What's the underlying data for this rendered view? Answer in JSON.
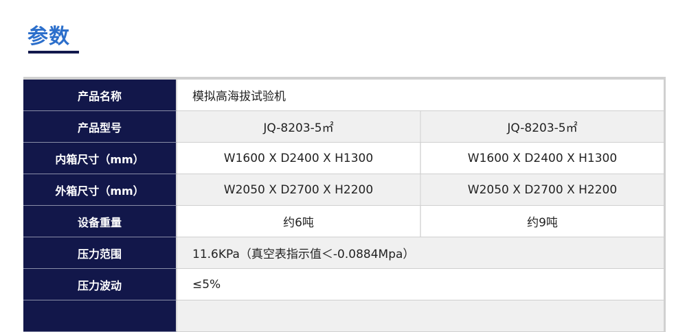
{
  "title": "参数",
  "rows": [
    {
      "label": "产品名称",
      "values": [
        "模拟高海拔试验机"
      ]
    },
    {
      "label": "产品型号",
      "values": [
        "JQ-8203-5㎡",
        "JQ-8203-5㎡"
      ]
    },
    {
      "label": "内箱尺寸（mm）",
      "values": [
        "W1600 X D2400 X H1300",
        "W1600 X D2400 X H1300"
      ]
    },
    {
      "label": "外箱尺寸（mm）",
      "values": [
        "W2050 X D2700 X H2200",
        "W2050 X D2700 X H2200"
      ]
    },
    {
      "label": "设备重量",
      "values": [
        "约6吨",
        "约9吨"
      ]
    },
    {
      "label": "压力范围",
      "values": [
        "11.6KPa（真空表指示值＜-0.0884Mpa）"
      ]
    },
    {
      "label": "压力波动",
      "values": [
        "≤5%"
      ]
    }
  ],
  "colors": {
    "accent": "#2c6fcb",
    "header_bg": "#12174a"
  }
}
